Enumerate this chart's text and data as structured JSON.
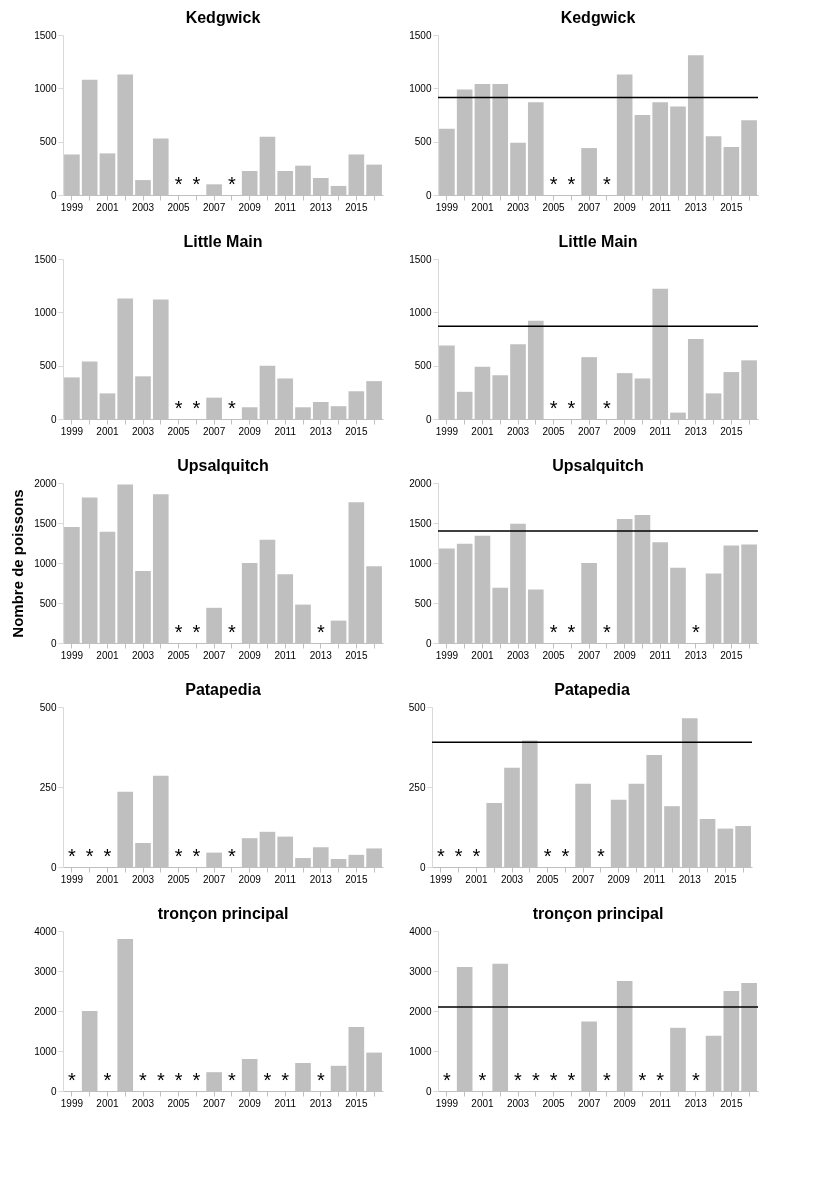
{
  "chart_data": [
    {
      "type": "bar",
      "title": "Kedgwick",
      "color": "#bfbfbf",
      "grid": false,
      "categories": [
        "1999",
        null,
        "2001",
        null,
        "2003",
        null,
        "2005",
        null,
        "2007",
        null,
        "2009",
        null,
        "2011",
        null,
        "2013",
        null,
        "2015",
        null
      ],
      "ylim": [
        0,
        1500
      ],
      "yticks": [
        0,
        500,
        1000,
        1500
      ],
      "values": [
        380,
        1080,
        390,
        1130,
        140,
        530,
        null,
        null,
        100,
        null,
        225,
        545,
        225,
        275,
        160,
        85,
        380,
        285
      ],
      "annotations": [
        "*",
        "*",
        "*"
      ]
    },
    {
      "type": "bar",
      "title": "Kedgwick",
      "color": "#bfbfbf",
      "grid": false,
      "categories": [
        "1999",
        null,
        "2001",
        null,
        "2003",
        null,
        "2005",
        null,
        "2007",
        null,
        "2009",
        null,
        "2011",
        null,
        "2013",
        null,
        "2015",
        null
      ],
      "ylim": [
        0,
        1500
      ],
      "yticks": [
        0,
        500,
        1000,
        1500
      ],
      "values": [
        620,
        990,
        1040,
        1040,
        490,
        870,
        null,
        null,
        440,
        null,
        1130,
        750,
        870,
        830,
        1310,
        550,
        450,
        700
      ],
      "ref_lines": [
        {
          "axis": "y",
          "value": 915,
          "color": "#000000"
        }
      ],
      "annotations": [
        "*",
        "*",
        "*"
      ]
    },
    {
      "type": "bar",
      "title": "Little Main",
      "color": "#bfbfbf",
      "grid": false,
      "categories": [
        "1999",
        null,
        "2001",
        null,
        "2003",
        null,
        "2005",
        null,
        "2007",
        null,
        "2009",
        null,
        "2011",
        null,
        "2013",
        null,
        "2015",
        null
      ],
      "ylim": [
        0,
        1500
      ],
      "yticks": [
        0,
        500,
        1000,
        1500
      ],
      "values": [
        390,
        540,
        240,
        1130,
        400,
        1120,
        null,
        null,
        200,
        null,
        110,
        500,
        380,
        110,
        160,
        120,
        260,
        355
      ],
      "annotations": [
        "*",
        "*",
        "*"
      ]
    },
    {
      "type": "bar",
      "title": "Little Main",
      "color": "#bfbfbf",
      "grid": false,
      "categories": [
        "1999",
        null,
        "2001",
        null,
        "2003",
        null,
        "2005",
        null,
        "2007",
        null,
        "2009",
        null,
        "2011",
        null,
        "2013",
        null,
        "2015",
        null
      ],
      "ylim": [
        0,
        1500
      ],
      "yticks": [
        0,
        500,
        1000,
        1500
      ],
      "values": [
        690,
        255,
        490,
        410,
        700,
        920,
        null,
        null,
        580,
        null,
        430,
        380,
        1220,
        60,
        750,
        240,
        440,
        550
      ],
      "ref_lines": [
        {
          "axis": "y",
          "value": 870,
          "color": "#000000"
        }
      ],
      "annotations": [
        "*",
        "*",
        "*"
      ]
    },
    {
      "type": "bar",
      "title": "Upsalquitch",
      "ylabel": "Nombre de poissons",
      "color": "#bfbfbf",
      "grid": false,
      "categories": [
        "1999",
        null,
        "2001",
        null,
        "2003",
        null,
        "2005",
        null,
        "2007",
        null,
        "2009",
        null,
        "2011",
        null,
        "2013",
        null,
        "2015",
        null
      ],
      "ylim": [
        0,
        2000
      ],
      "yticks": [
        0,
        500,
        1000,
        1500,
        2000
      ],
      "values": [
        1450,
        1820,
        1390,
        1980,
        900,
        1860,
        null,
        null,
        440,
        null,
        1000,
        1290,
        860,
        480,
        null,
        280,
        1760,
        960
      ],
      "annotations": [
        "*",
        "*",
        "*",
        "*"
      ]
    },
    {
      "type": "bar",
      "title": "Upsalquitch",
      "color": "#bfbfbf",
      "grid": false,
      "categories": [
        "1999",
        null,
        "2001",
        null,
        "2003",
        null,
        "2005",
        null,
        "2007",
        null,
        "2009",
        null,
        "2011",
        null,
        "2013",
        null,
        "2015",
        null
      ],
      "ylim": [
        0,
        2000
      ],
      "yticks": [
        0,
        500,
        1000,
        1500,
        2000
      ],
      "values": [
        1180,
        1240,
        1340,
        690,
        1490,
        670,
        null,
        null,
        1000,
        null,
        1550,
        1600,
        1260,
        940,
        null,
        870,
        1220,
        1230
      ],
      "ref_lines": [
        {
          "axis": "y",
          "value": 1400,
          "color": "#000000"
        }
      ],
      "annotations": [
        "*",
        "*",
        "*",
        "*"
      ]
    },
    {
      "type": "bar",
      "title": "Patapedia",
      "color": "#bfbfbf",
      "grid": false,
      "categories": [
        "1999",
        null,
        "2001",
        null,
        "2003",
        null,
        "2005",
        null,
        "2007",
        null,
        "2009",
        null,
        "2011",
        null,
        "2013",
        null,
        "2015",
        null
      ],
      "ylim": [
        0,
        500
      ],
      "yticks": [
        0,
        250,
        500
      ],
      "values": [
        null,
        null,
        null,
        235,
        75,
        285,
        null,
        null,
        45,
        null,
        90,
        110,
        95,
        28,
        62,
        25,
        38,
        58
      ],
      "annotations": [
        "*",
        "*",
        "*",
        "*",
        "*",
        "*"
      ]
    },
    {
      "type": "bar",
      "title": "Patapedia",
      "color": "#bfbfbf",
      "grid": false,
      "categories": [
        "1999",
        null,
        "2001",
        null,
        "2003",
        null,
        "2005",
        null,
        "2007",
        null,
        "2009",
        null,
        "2011",
        null,
        "2013",
        null,
        "2015",
        null
      ],
      "ylim": [
        0,
        500
      ],
      "yticks": [
        0,
        250,
        500
      ],
      "values": [
        null,
        null,
        null,
        200,
        310,
        395,
        null,
        null,
        260,
        null,
        210,
        260,
        350,
        190,
        465,
        150,
        120,
        128
      ],
      "ref_lines": [
        {
          "axis": "y",
          "value": 390,
          "color": "#000000"
        }
      ],
      "annotations": [
        "*",
        "*",
        "*",
        "*",
        "*",
        "*"
      ]
    },
    {
      "type": "bar",
      "title": "tronçon principal",
      "color": "#bfbfbf",
      "grid": false,
      "categories": [
        "1999",
        null,
        "2001",
        null,
        "2003",
        null,
        "2005",
        null,
        "2007",
        null,
        "2009",
        null,
        "2011",
        null,
        "2013",
        null,
        "2015",
        null
      ],
      "ylim": [
        0,
        4000
      ],
      "yticks": [
        0,
        1000,
        2000,
        3000,
        4000
      ],
      "values": [
        null,
        2000,
        null,
        3800,
        null,
        null,
        null,
        null,
        470,
        null,
        800,
        null,
        null,
        700,
        null,
        630,
        1600,
        960
      ],
      "annotations": [
        "*",
        "*",
        "*",
        "*",
        "*",
        "*",
        "*",
        "*",
        "*",
        "*"
      ]
    },
    {
      "type": "bar",
      "title": "tronçon principal",
      "color": "#bfbfbf",
      "grid": false,
      "categories": [
        "1999",
        null,
        "2001",
        null,
        "2003",
        null,
        "2005",
        null,
        "2007",
        null,
        "2009",
        null,
        "2011",
        null,
        "2013",
        null,
        "2015",
        null
      ],
      "ylim": [
        0,
        4000
      ],
      "yticks": [
        0,
        1000,
        2000,
        3000,
        4000
      ],
      "values": [
        null,
        3100,
        null,
        3180,
        null,
        null,
        null,
        null,
        1740,
        null,
        2750,
        null,
        null,
        1580,
        null,
        1380,
        2500,
        2700
      ],
      "ref_lines": [
        {
          "axis": "y",
          "value": 2100,
          "color": "#000000"
        }
      ],
      "annotations": [
        "*",
        "*",
        "*",
        "*",
        "*",
        "*",
        "*",
        "*",
        "*",
        "*"
      ]
    }
  ]
}
